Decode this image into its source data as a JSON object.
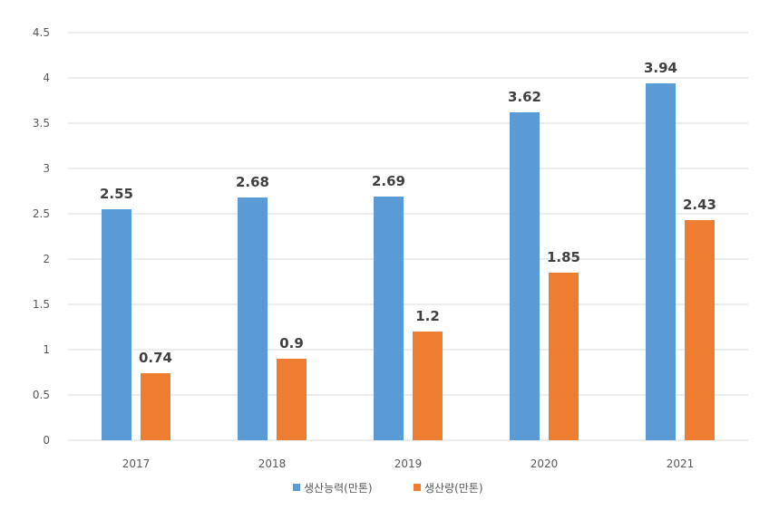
{
  "chart_data": {
    "type": "bar",
    "title": "",
    "xlabel": "",
    "ylabel": "",
    "categories": [
      "2017",
      "2018",
      "2019",
      "2020",
      "2021"
    ],
    "series": [
      {
        "name": "생산능력(만톤)",
        "color": "#5b9bd5",
        "values": [
          2.55,
          2.68,
          2.69,
          3.62,
          3.94
        ]
      },
      {
        "name": "생산량(만톤)",
        "color": "#ed7d31",
        "values": [
          0.74,
          0.9,
          1.2,
          1.85,
          2.43
        ]
      }
    ],
    "ylim": [
      0,
      4.5
    ],
    "yticks": [
      "0",
      "0.5",
      "1",
      "1.5",
      "2",
      "2.5",
      "3",
      "3.5",
      "4",
      "4.5"
    ],
    "grid": true,
    "legend_position": "bottom"
  }
}
